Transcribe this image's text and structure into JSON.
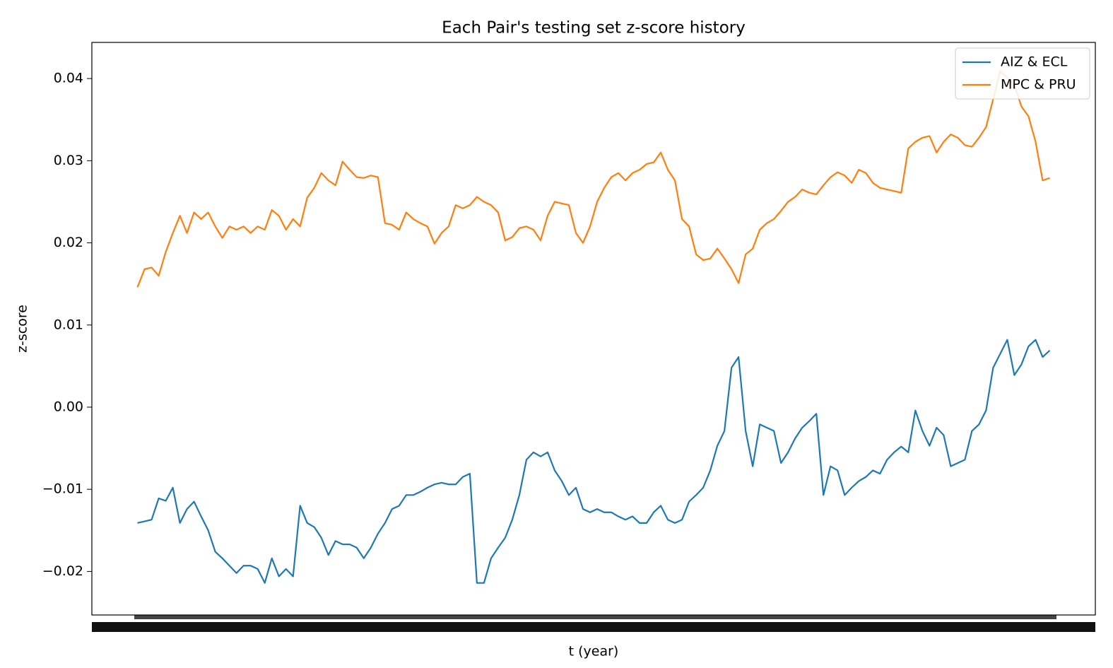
{
  "chart_data": {
    "type": "line",
    "title": "Each Pair's testing set z-score history",
    "xlabel": "t (year)",
    "ylabel": "z-score",
    "ylim": [
      -0.0253,
      0.0444
    ],
    "yticks": [
      {
        "value": -0.02,
        "label": "−0.02"
      },
      {
        "value": -0.01,
        "label": "−0.01"
      },
      {
        "value": 0,
        "label": "0.00"
      },
      0.01,
      0.02,
      0.03,
      0.04
    ],
    "legend": "upper right",
    "series": [
      {
        "name": "AIZ & ECL",
        "color": "#1f77b4",
        "values": [
          -0.0141,
          -0.0139,
          -0.0137,
          -0.0111,
          -0.0114,
          -0.0098,
          -0.0141,
          -0.0124,
          -0.0115,
          -0.0133,
          -0.015,
          -0.0176,
          -0.0184,
          -0.0193,
          -0.0202,
          -0.0193,
          -0.0193,
          -0.0197,
          -0.0214,
          -0.0184,
          -0.0206,
          -0.0197,
          -0.0206,
          -0.012,
          -0.0141,
          -0.0146,
          -0.0159,
          -0.018,
          -0.0163,
          -0.0167,
          -0.0167,
          -0.0171,
          -0.0184,
          -0.0171,
          -0.0154,
          -0.0141,
          -0.0124,
          -0.012,
          -0.0107,
          -0.0107,
          -0.0103,
          -0.0098,
          -0.0094,
          -0.0092,
          -0.0094,
          -0.0094,
          -0.0085,
          -0.0081,
          -0.0214,
          -0.0214,
          -0.0184,
          -0.0171,
          -0.0159,
          -0.0137,
          -0.0107,
          -0.0064,
          -0.0055,
          -0.006,
          -0.0055,
          -0.0077,
          -0.009,
          -0.0107,
          -0.0098,
          -0.0124,
          -0.0128,
          -0.0124,
          -0.0128,
          -0.0128,
          -0.0133,
          -0.0137,
          -0.0133,
          -0.0141,
          -0.0141,
          -0.0128,
          -0.012,
          -0.0137,
          -0.0141,
          -0.0137,
          -0.0115,
          -0.0107,
          -0.0098,
          -0.0077,
          -0.0047,
          -0.0029,
          0.0048,
          0.0061,
          -0.0029,
          -0.0072,
          -0.0021,
          -0.0025,
          -0.0029,
          -0.0068,
          -0.0055,
          -0.0038,
          -0.0025,
          -0.0017,
          -0.0008,
          -0.0107,
          -0.0072,
          -0.0077,
          -0.0107,
          -0.0098,
          -0.009,
          -0.0085,
          -0.0077,
          -0.0081,
          -0.0064,
          -0.0055,
          -0.0048,
          -0.0055,
          -0.0004,
          -0.0029,
          -0.0047,
          -0.0025,
          -0.0034,
          -0.0072,
          -0.0068,
          -0.0064,
          -0.0029,
          -0.0021,
          -0.0004,
          0.0048,
          0.0065,
          0.0082,
          0.0039,
          0.0052,
          0.0074,
          0.0082,
          0.0061,
          0.0069
        ]
      },
      {
        "name": "MPC & PRU",
        "color": "#ff7f0e",
        "values": [
          0.0146,
          0.0168,
          0.017,
          0.016,
          0.0189,
          0.0212,
          0.0233,
          0.0212,
          0.0237,
          0.0229,
          0.0237,
          0.022,
          0.0206,
          0.022,
          0.0216,
          0.022,
          0.0212,
          0.022,
          0.0216,
          0.024,
          0.0233,
          0.0216,
          0.0229,
          0.022,
          0.0255,
          0.0267,
          0.0285,
          0.0276,
          0.027,
          0.0299,
          0.0289,
          0.028,
          0.0279,
          0.0282,
          0.028,
          0.0224,
          0.0222,
          0.0216,
          0.0237,
          0.0229,
          0.0224,
          0.022,
          0.0199,
          0.0212,
          0.022,
          0.0246,
          0.0242,
          0.0246,
          0.0256,
          0.025,
          0.0246,
          0.0237,
          0.0203,
          0.0207,
          0.0218,
          0.022,
          0.0216,
          0.0203,
          0.0233,
          0.025,
          0.0248,
          0.0246,
          0.0212,
          0.02,
          0.022,
          0.025,
          0.0267,
          0.028,
          0.0285,
          0.0276,
          0.0285,
          0.0289,
          0.0296,
          0.0298,
          0.031,
          0.0289,
          0.0276,
          0.0229,
          0.022,
          0.0186,
          0.0179,
          0.0181,
          0.0193,
          0.0181,
          0.0168,
          0.0151,
          0.0186,
          0.0193,
          0.0216,
          0.0224,
          0.0229,
          0.0239,
          0.025,
          0.0256,
          0.0265,
          0.0261,
          0.0259,
          0.027,
          0.028,
          0.0286,
          0.0282,
          0.0273,
          0.0289,
          0.0285,
          0.0273,
          0.0267,
          0.0265,
          0.0263,
          0.0261,
          0.0315,
          0.0323,
          0.0328,
          0.033,
          0.031,
          0.0323,
          0.0332,
          0.0328,
          0.0319,
          0.0317,
          0.0328,
          0.0341,
          0.0375,
          0.0409,
          0.0401,
          0.0392,
          0.0366,
          0.0354,
          0.0323,
          0.0276,
          0.0279
        ]
      }
    ]
  }
}
